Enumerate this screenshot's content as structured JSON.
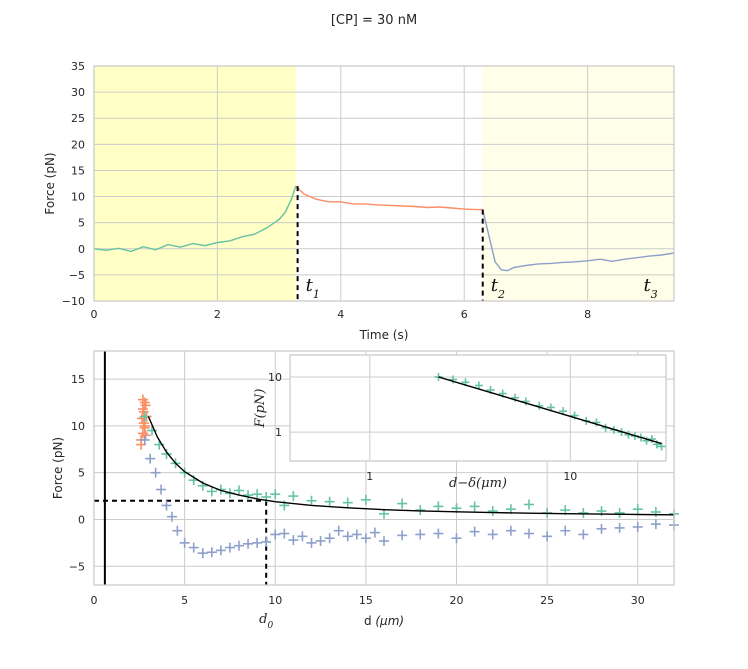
{
  "figure": {
    "title": "[CP] = 30 nM"
  },
  "colors": {
    "green": "#66c2a5",
    "orange": "#fc8d62",
    "blue": "#8da0cb",
    "shade_strong": "#ffffc6",
    "shade_light": "#fffee8",
    "fit": "#000000"
  },
  "chart_data": [
    {
      "type": "line",
      "panel": "time-trace",
      "xlabel": "Time (s)",
      "ylabel": "Force (pN)",
      "xlim": [
        0,
        9.4
      ],
      "ylim": [
        -10,
        35
      ],
      "xticks": [
        0,
        2,
        4,
        6,
        8
      ],
      "yticks": [
        -10,
        -5,
        0,
        5,
        10,
        15,
        20,
        25,
        30,
        35
      ],
      "grid": true,
      "shaded_regions": [
        {
          "x": [
            0,
            3.27
          ],
          "color": "#ffffc6"
        },
        {
          "x": [
            6.3,
            9.4
          ],
          "color": "#fffee8"
        }
      ],
      "markers": [
        {
          "label": "t",
          "sub": "1",
          "x": 3.3,
          "y_top": 12
        },
        {
          "label": "t",
          "sub": "2",
          "x": 6.3,
          "y_top": 7.5
        },
        {
          "label": "t",
          "sub": "3",
          "x": 9.1,
          "y_top": null
        }
      ],
      "series": [
        {
          "color": "#66c2a5",
          "x": [
            0,
            0.2,
            0.4,
            0.6,
            0.8,
            1.0,
            1.2,
            1.4,
            1.6,
            1.8,
            2.0,
            2.2,
            2.4,
            2.6,
            2.8,
            3.0,
            3.1,
            3.2,
            3.27
          ],
          "y": [
            0,
            -0.3,
            0.1,
            -0.5,
            0.4,
            -0.2,
            0.8,
            0.3,
            1.0,
            0.6,
            1.2,
            1.5,
            2.3,
            2.8,
            4.0,
            5.6,
            7.0,
            9.5,
            12.0
          ]
        },
        {
          "color": "#fc8d62",
          "x": [
            3.27,
            3.4,
            3.6,
            3.8,
            4.0,
            4.2,
            4.4,
            4.6,
            4.8,
            5.0,
            5.2,
            5.4,
            5.6,
            5.8,
            6.0,
            6.2,
            6.3
          ],
          "y": [
            12.0,
            10.5,
            9.5,
            9.0,
            9.0,
            8.6,
            8.6,
            8.4,
            8.3,
            8.2,
            8.1,
            7.9,
            8.0,
            7.8,
            7.6,
            7.5,
            7.5
          ]
        },
        {
          "color": "#8da0cb",
          "x": [
            6.3,
            6.4,
            6.5,
            6.6,
            6.7,
            6.8,
            7.0,
            7.2,
            7.4,
            7.6,
            7.8,
            8.0,
            8.2,
            8.4,
            8.6,
            8.8,
            9.0,
            9.2,
            9.4
          ],
          "y": [
            7.5,
            2.5,
            -2.5,
            -4.0,
            -4.2,
            -3.6,
            -3.2,
            -2.9,
            -2.8,
            -2.6,
            -2.5,
            -2.3,
            -2.0,
            -2.4,
            -2.0,
            -1.7,
            -1.4,
            -1.2,
            -0.8
          ]
        }
      ]
    },
    {
      "type": "scatter",
      "panel": "force-distance",
      "xlabel": "d",
      "xlabel_unit": "(μm)",
      "ylabel": "Force (pN)",
      "xlim": [
        0,
        32
      ],
      "ylim": [
        -7,
        18
      ],
      "xticks": [
        0,
        5,
        10,
        15,
        20,
        25,
        30
      ],
      "yticks": [
        -5,
        0,
        5,
        10,
        15
      ],
      "grid": true,
      "annotations": {
        "vertical_line_x": 0.6,
        "d0_label": "d",
        "d0_sub": "0",
        "d0_x": 9.5,
        "force_level_y": 2
      },
      "series": [
        {
          "color": "#fc8d62",
          "x": [
            2.6,
            2.7,
            2.8,
            2.65,
            2.75,
            2.85,
            2.7,
            2.8,
            2.6,
            2.9,
            2.75,
            2.85,
            2.7,
            2.8
          ],
          "y": [
            8.5,
            9.2,
            10.0,
            10.8,
            11.5,
            12.2,
            12.8,
            9.8,
            8.0,
            11.0,
            10.3,
            9.0,
            11.8,
            12.5
          ]
        },
        {
          "color": "#66c2a5",
          "x": [
            2.8,
            3.2,
            3.6,
            4.0,
            4.5,
            5.0,
            5.5,
            6.0,
            6.5,
            7.0,
            7.5,
            8.0,
            8.5,
            9.0,
            9.5,
            10.0,
            10.5,
            11.0,
            12.0,
            13.0,
            14.0,
            15.0,
            16.0,
            17.0,
            18.0,
            19.0,
            20.0,
            21.0,
            22.0,
            23.0,
            24.0,
            25.0,
            26.0,
            27.0,
            28.0,
            29.0,
            30.0,
            31.0,
            32.0
          ],
          "y": [
            11.0,
            9.5,
            8.0,
            7.0,
            6.0,
            5.0,
            4.2,
            3.6,
            3.0,
            3.2,
            2.8,
            3.1,
            2.6,
            2.7,
            2.4,
            2.7,
            1.5,
            2.5,
            2.0,
            1.9,
            1.8,
            2.1,
            0.6,
            1.7,
            1.0,
            1.4,
            1.2,
            1.4,
            0.9,
            1.1,
            1.6,
            0.7,
            1.0,
            0.7,
            0.9,
            0.7,
            1.1,
            0.8,
            0.6
          ]
        },
        {
          "color": "#8da0cb",
          "x": [
            2.8,
            3.1,
            3.4,
            3.7,
            4.0,
            4.3,
            4.6,
            5.0,
            5.5,
            6.0,
            6.5,
            7.0,
            7.5,
            8.0,
            8.5,
            9.0,
            9.5,
            10.0,
            10.5,
            11.0,
            11.5,
            12.0,
            12.5,
            13.0,
            13.5,
            14.0,
            14.5,
            15.0,
            15.5,
            16.0,
            17.0,
            18.0,
            19.0,
            20.0,
            21.0,
            22.0,
            23.0,
            24.0,
            25.0,
            26.0,
            27.0,
            28.0,
            29.0,
            30.0,
            31.0,
            32.0
          ],
          "y": [
            8.5,
            6.5,
            5.0,
            3.2,
            1.5,
            0.3,
            -1.2,
            -2.5,
            -3.0,
            -3.6,
            -3.5,
            -3.3,
            -3.0,
            -2.8,
            -2.6,
            -2.5,
            -2.4,
            -1.6,
            -1.5,
            -2.2,
            -1.8,
            -2.5,
            -2.3,
            -2.0,
            -1.2,
            -1.8,
            -1.6,
            -2.0,
            -1.4,
            -2.3,
            -1.7,
            -1.6,
            -1.5,
            -2.0,
            -1.3,
            -1.6,
            -1.2,
            -1.5,
            -1.8,
            -1.2,
            -1.6,
            -1.0,
            -0.9,
            -0.8,
            -0.5,
            -0.6
          ]
        }
      ],
      "fit_curve": {
        "color": "#000000",
        "x": [
          3.0,
          3.5,
          4.0,
          4.5,
          5.0,
          6.0,
          7.0,
          8.0,
          9.0,
          10.0,
          12.0,
          14.0,
          16.0,
          18.0,
          20.0,
          22.0,
          24.0,
          26.0,
          28.0,
          30.0,
          32.0
        ],
        "y": [
          11.0,
          8.8,
          7.2,
          6.0,
          5.1,
          3.9,
          3.1,
          2.6,
          2.2,
          1.9,
          1.5,
          1.25,
          1.05,
          0.92,
          0.82,
          0.74,
          0.67,
          0.62,
          0.57,
          0.53,
          0.5
        ]
      }
    },
    {
      "type": "scatter",
      "panel": "inset-loglog",
      "xlabel": "d−δ",
      "xlabel_unit": "(μm)",
      "ylabel": "F",
      "ylabel_unit": "(pN)",
      "x_scale": "log",
      "y_scale": "log",
      "xlim": [
        0.4,
        30
      ],
      "ylim": [
        0.3,
        25
      ],
      "xticks": [
        1,
        10
      ],
      "yticks": [
        1,
        10
      ],
      "grid": true,
      "series": [
        {
          "color": "#66c2a5",
          "x": [
            2.2,
            2.6,
            3.0,
            3.5,
            4.0,
            4.6,
            5.3,
            6.0,
            7.0,
            8.0,
            9.2,
            10.5,
            12.0,
            13.5,
            15.0,
            16.5,
            18.0,
            19.5,
            21.0,
            22.5,
            24.0,
            25.5,
            27.0,
            28.5
          ],
          "y": [
            10.0,
            9.0,
            8.0,
            7.0,
            5.8,
            5.0,
            4.2,
            3.6,
            3.0,
            2.8,
            2.4,
            2.0,
            1.6,
            1.5,
            1.2,
            1.1,
            1.0,
            0.9,
            0.85,
            0.8,
            0.7,
            0.75,
            0.6,
            0.55
          ]
        }
      ],
      "fit_curve": {
        "color": "#000000",
        "x": [
          2.2,
          28.5
        ],
        "y": [
          10.0,
          0.62
        ]
      }
    }
  ]
}
